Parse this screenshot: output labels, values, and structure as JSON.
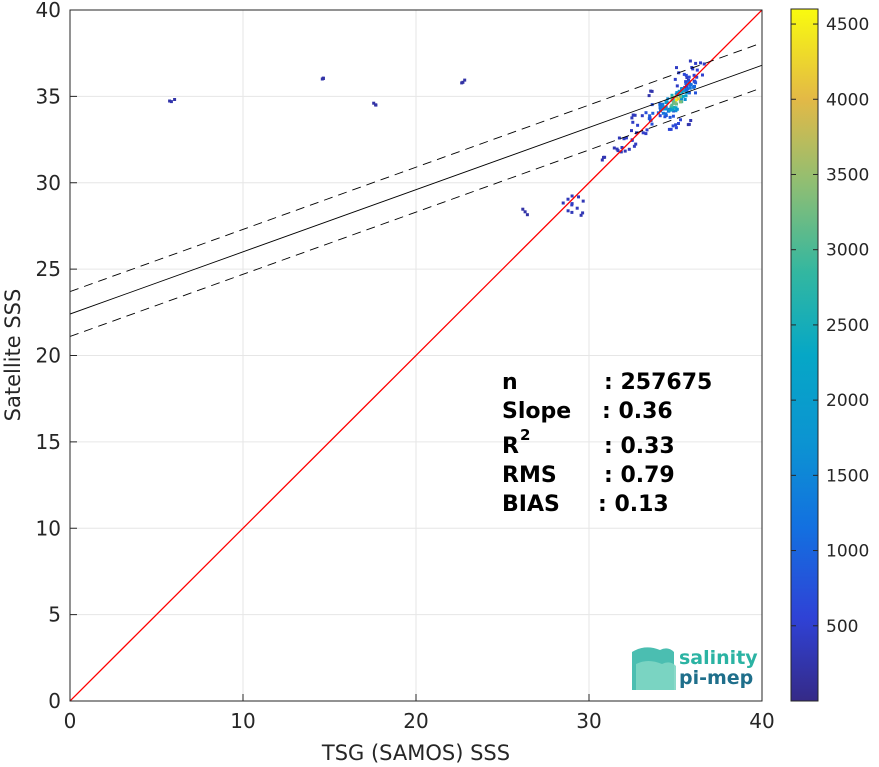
{
  "chart_data": {
    "type": "heatmap",
    "xlabel": "TSG (SAMOS) SSS",
    "ylabel": "Satellite SSS",
    "xlim": [
      0,
      40
    ],
    "ylim": [
      0,
      40
    ],
    "x_ticks": [
      "0",
      "10",
      "20",
      "30",
      "40"
    ],
    "y_ticks": [
      "0",
      "5",
      "10",
      "15",
      "20",
      "25",
      "30",
      "35",
      "40"
    ],
    "grid": true,
    "colorbar": {
      "colormap": "parula",
      "range": [
        0,
        4600
      ],
      "ticks": [
        "500",
        "1000",
        "1500",
        "2000",
        "2500",
        "3000",
        "3500",
        "4000",
        "4500"
      ]
    },
    "density_clusters": [
      {
        "x": 35.0,
        "y": 34.9,
        "count": 4500
      },
      {
        "x": 34.7,
        "y": 34.6,
        "count": 3000
      },
      {
        "x": 35.3,
        "y": 35.2,
        "count": 2500
      },
      {
        "x": 34.3,
        "y": 34.4,
        "count": 1600
      },
      {
        "x": 35.8,
        "y": 35.6,
        "count": 1200
      },
      {
        "x": 33.8,
        "y": 34.0,
        "count": 900
      },
      {
        "x": 34.6,
        "y": 33.8,
        "count": 700
      },
      {
        "x": 35.5,
        "y": 36.2,
        "count": 500
      },
      {
        "x": 33.0,
        "y": 33.4,
        "count": 400
      },
      {
        "x": 32.3,
        "y": 32.5,
        "count": 300
      },
      {
        "x": 31.5,
        "y": 32.0,
        "count": 200
      },
      {
        "x": 30.8,
        "y": 31.5,
        "count": 150
      },
      {
        "x": 29.0,
        "y": 28.8,
        "count": 250
      },
      {
        "x": 33.5,
        "y": 35.3,
        "count": 120
      },
      {
        "x": 35.8,
        "y": 33.6,
        "count": 150
      },
      {
        "x": 36.2,
        "y": 36.5,
        "count": 400
      },
      {
        "x": 5.8,
        "y": 34.8,
        "count": 80
      },
      {
        "x": 14.5,
        "y": 36.0,
        "count": 60
      },
      {
        "x": 17.6,
        "y": 34.6,
        "count": 40
      },
      {
        "x": 22.7,
        "y": 36.0,
        "count": 40
      },
      {
        "x": 26.2,
        "y": 28.4,
        "count": 60
      }
    ],
    "reference_lines": [
      {
        "name": "identity",
        "slope": 1.0,
        "intercept": 0.0,
        "color": "#ff0000",
        "style": "solid"
      },
      {
        "name": "regression",
        "slope": 0.36,
        "intercept": 22.4,
        "color": "#000000",
        "style": "solid"
      },
      {
        "name": "regression-upper",
        "slope": 0.36,
        "intercept": 23.7,
        "color": "#000000",
        "style": "dashed"
      },
      {
        "name": "regression-lower",
        "slope": 0.36,
        "intercept": 21.1,
        "color": "#000000",
        "style": "dashed"
      }
    ]
  },
  "stats": {
    "n_label": "n",
    "n_value": ": 257675",
    "slope_label": "Slope",
    "slope_value": ": 0.36",
    "r2_label": "R",
    "r2_sup": "2",
    "r2_value": ": 0.33",
    "rms_label": "RMS",
    "rms_value": ": 0.79",
    "bias_label": "BIAS",
    "bias_value": ": 0.13"
  },
  "logo": {
    "line1": "salinity",
    "line2": "pi-mep",
    "color1": "#2bb3a3",
    "color2": "#1f6f8b"
  }
}
